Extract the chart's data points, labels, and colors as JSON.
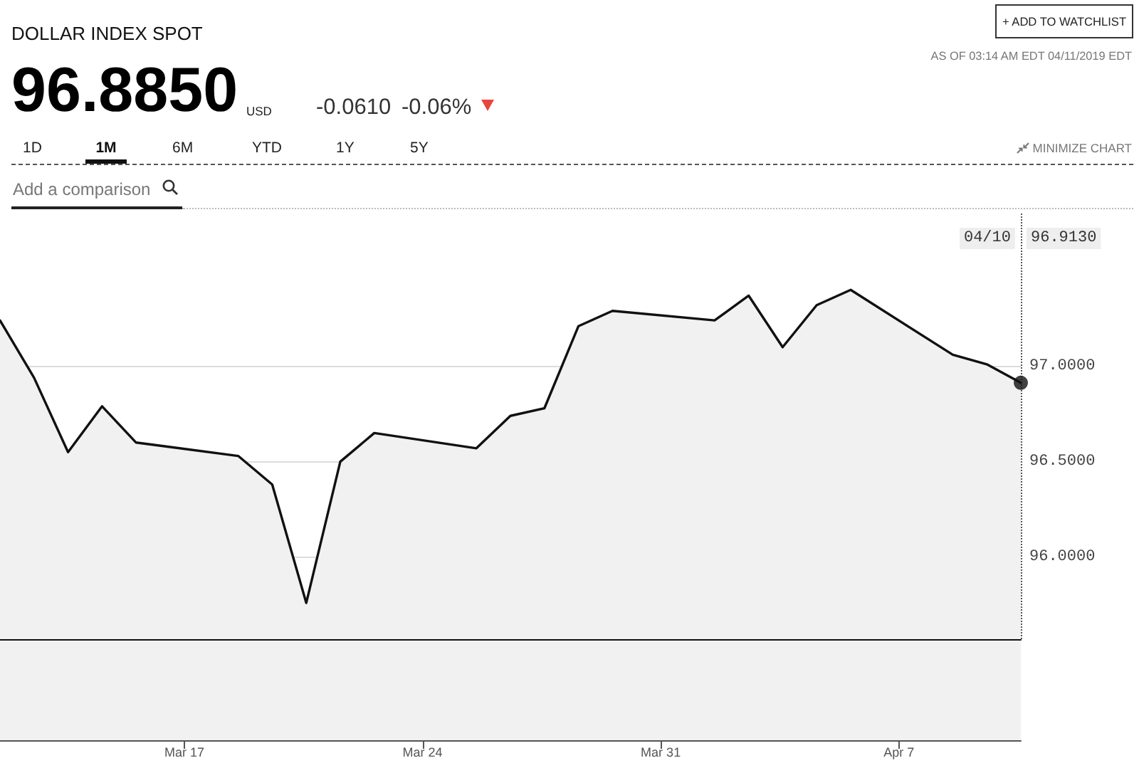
{
  "chart_data": {
    "type": "area",
    "title": "DOLLAR INDEX SPOT",
    "x": [
      "2019-03-11T14:00",
      "2019-03-12T14:00",
      "2019-03-13T14:00",
      "2019-03-14T14:00",
      "2019-03-15T14:00",
      "2019-03-18T14:00",
      "2019-03-19T14:00",
      "2019-03-20T14:00",
      "2019-03-21T14:00",
      "2019-03-22T14:00",
      "2019-03-25T14:00",
      "2019-03-26T14:00",
      "2019-03-27T14:00",
      "2019-03-28T14:00",
      "2019-03-29T14:00",
      "2019-04-01T14:00",
      "2019-04-02T14:00",
      "2019-04-03T14:00",
      "2019-04-04T14:00",
      "2019-04-05T14:00",
      "2019-04-08T14:00",
      "2019-04-09T14:00",
      "2019-04-10T14:00"
    ],
    "series": [
      {
        "color": "#111111",
        "values": [
          97.24,
          96.94,
          96.55,
          96.79,
          96.6,
          96.53,
          96.38,
          95.76,
          96.5,
          96.65,
          96.57,
          96.74,
          96.78,
          97.21,
          97.29,
          97.24,
          97.37,
          97.1,
          97.32,
          97.4,
          97.06,
          97.01,
          96.913
        ]
      },
      {
        "type": "scatter",
        "color": "#111111",
        "marker": "circle",
        "x": [
          "2019-04-10T14:00"
        ],
        "values": [
          96.913
        ]
      }
    ],
    "xlim": [
      "2019-03-11T14:00",
      "2019-04-10T14:00"
    ],
    "xticks": [
      {
        "value": "2019-03-17",
        "label": "Mar 17"
      },
      {
        "value": "2019-03-24",
        "label": "Mar 24"
      },
      {
        "value": "2019-03-31",
        "label": "Mar 31"
      },
      {
        "value": "2019-04-07",
        "label": "Apr 7"
      }
    ],
    "ylim": [
      95.57,
      97.8
    ],
    "yticks": [
      {
        "value": 96,
        "label": "96.0000"
      },
      {
        "value": 96.5,
        "label": "96.5000"
      },
      {
        "value": 97,
        "label": "97.0000"
      }
    ],
    "grid": "y",
    "marker": "none",
    "line_style": "solid",
    "ref_lines": [
      {
        "axis": "x",
        "value": "2019-04-10T14:00",
        "label": "04/10",
        "color": "#555555",
        "line_style": "dotted"
      }
    ],
    "annotations": [
      "96.8850",
      "USD",
      "-0.0610",
      "-0.06%",
      "AS OF 03:14 AM EDT 04/11/2019 EDT",
      "+ ADD TO WATCHLIST",
      "1D",
      "1M",
      "6M",
      "YTD",
      "1Y",
      "5Y",
      "MINIMIZE CHART",
      "Add a comparison",
      "96.9130"
    ]
  }
}
